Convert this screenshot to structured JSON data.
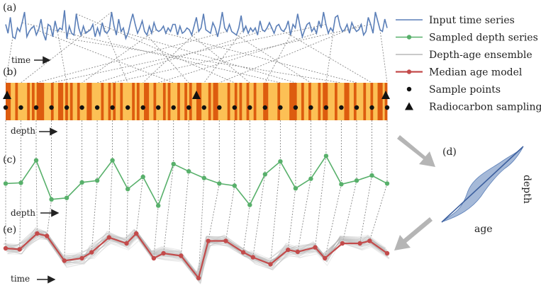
{
  "panels": {
    "a": "(a)",
    "b": "(b)",
    "c": "(c)",
    "d": "(d)",
    "e": "(e)"
  },
  "axis_labels": {
    "a": "time",
    "b": "depth",
    "c": "depth",
    "e": "time"
  },
  "annotations": {
    "depth": "depth",
    "age": "age"
  },
  "legend": [
    {
      "label": "Input time series",
      "marker": "line",
      "color": "#5b7fb8"
    },
    {
      "label": "Sampled depth series",
      "marker": "line-dot",
      "color": "#58b06b"
    },
    {
      "label": "Depth-age ensemble",
      "marker": "line",
      "color": "#b8b8b8"
    },
    {
      "label": "Median age model",
      "marker": "line-dot",
      "color": "#c34b4b"
    },
    {
      "label": "Sample points",
      "marker": "dot",
      "color": "#111111"
    },
    {
      "label": "Radiocarbon sampling",
      "marker": "triangle",
      "color": "#111111"
    }
  ],
  "colors": {
    "input": "#5b7fb8",
    "sampled": "#58b06b",
    "ensemble": "#b8b8b8",
    "median": "#c34b4b",
    "core_light": "#fcc055",
    "core_dark": "#dd5c0f",
    "arrow": "#b5b5b5",
    "connector": "#888888"
  },
  "icons": {
    "flow_arrow": "arrow-right-icon",
    "process_arrow": "thick-arrow-icon"
  },
  "series": {
    "input_values": [
      0.55,
      0.3,
      0.75,
      0.2,
      0.15,
      0.45,
      0.35,
      0.6,
      0.9,
      0.2,
      0.35,
      0.45,
      0.5,
      0.25,
      0.4,
      0.7,
      0.3,
      0.1,
      0.55,
      0.5,
      0.2,
      0.65,
      0.35,
      0.45,
      0.4,
      0.95,
      0.15,
      0.5,
      0.3,
      0.25,
      0.85,
      0.45,
      0.25,
      0.5,
      0.3,
      0.35,
      0.4,
      0.55,
      0.2,
      0.45,
      0.25,
      0.6,
      0.35,
      0.3,
      0.4,
      0.9,
      0.5,
      0.25,
      0.7,
      0.35,
      0.45,
      0.15,
      0.3,
      0.6,
      0.85,
      0.55,
      0.3,
      0.45,
      0.65,
      0.35,
      0.25,
      0.5,
      0.3,
      0.6,
      0.4,
      0.35,
      0.4,
      0.5,
      0.3,
      0.45,
      0.35,
      0.55,
      0.55,
      0.25,
      0.5,
      0.3,
      0.35,
      0.45,
      0.4,
      0.25,
      0.5,
      0.75,
      0.35,
      0.45,
      0.85,
      0.4,
      0.35,
      0.3,
      0.6,
      0.45,
      0.2,
      0.5,
      0.9,
      0.45,
      0.35,
      0.55,
      0.35,
      0.3,
      0.25,
      0.45,
      0.8,
      0.35,
      0.5,
      0.3,
      0.45,
      0.35,
      0.45,
      0.25,
      0.65,
      0.4,
      0.35,
      0.45,
      0.6,
      0.45,
      0.3,
      0.5,
      0.55,
      0.4,
      0.35,
      0.45,
      0.65,
      0.25,
      0.55,
      0.45,
      0.85,
      0.5,
      0.2,
      0.4,
      0.55,
      0.6,
      0.35,
      0.45,
      0.3,
      0.65,
      0.45,
      0.9,
      0.55,
      0.3,
      0.45,
      0.35,
      0.75,
      0.8,
      0.5,
      0.35,
      0.4,
      0.55,
      0.3,
      0.6,
      0.45,
      0.35,
      0.4,
      0.55,
      0.25,
      0.35,
      0.75,
      0.55,
      0.3,
      0.9,
      0.65,
      0.4,
      0.35,
      0.7,
      0.45
    ],
    "sampled_values": [
      0.05,
      0.07,
      0.68,
      -0.38,
      -0.34,
      0.08,
      0.13,
      0.68,
      -0.1,
      0.23,
      -0.55,
      0.58,
      0.38,
      0.2,
      0.05,
      -0.01,
      -0.53,
      0.3,
      0.65,
      -0.08,
      0.18,
      0.8,
      0.03,
      0.13,
      0.27,
      0.05
    ],
    "median_values": [
      0.7,
      0.68,
      1.0,
      0.95,
      0.45,
      0.5,
      0.62,
      0.92,
      0.8,
      1.0,
      0.5,
      0.6,
      0.55,
      0.1,
      0.85,
      0.85,
      0.62,
      0.52,
      0.38,
      0.67,
      0.63,
      0.72,
      0.5,
      0.8,
      0.8,
      0.85,
      0.6
    ]
  },
  "core_pattern": [
    1,
    1,
    0,
    0,
    1,
    0,
    0,
    0,
    0,
    1,
    0,
    1,
    0,
    1,
    1,
    1,
    0,
    0,
    0,
    1,
    0,
    0,
    1,
    1,
    0,
    1,
    0,
    1,
    0,
    0,
    1,
    0,
    0,
    0,
    1,
    1,
    0,
    0,
    0,
    0,
    1,
    0,
    0,
    1,
    0,
    1,
    0,
    0,
    1,
    0,
    0,
    0,
    0,
    1,
    0,
    1,
    0,
    0,
    1,
    1,
    0,
    0,
    1,
    0,
    0,
    0,
    1,
    0,
    1,
    0,
    0,
    0,
    1,
    0,
    0,
    1,
    0,
    1,
    0,
    0,
    1,
    1,
    0,
    0,
    0,
    1,
    0,
    1,
    1,
    0,
    0,
    0,
    0,
    1,
    0,
    0,
    1,
    0,
    1,
    0,
    0,
    1,
    0,
    0,
    1,
    0,
    0,
    0,
    1,
    1,
    0,
    0,
    0,
    0,
    1,
    0,
    0,
    0,
    0,
    1,
    1,
    1,
    0,
    0,
    1,
    0,
    0,
    1,
    0,
    0,
    0,
    1,
    0,
    1,
    1,
    0,
    0,
    0,
    1,
    0,
    0,
    0,
    1,
    1,
    0,
    0,
    1,
    0,
    0,
    0,
    1,
    0,
    0,
    1,
    0,
    0,
    1,
    1,
    0,
    1
  ],
  "radiocarbon_positions": [
    0.0,
    0.5,
    1.0
  ]
}
